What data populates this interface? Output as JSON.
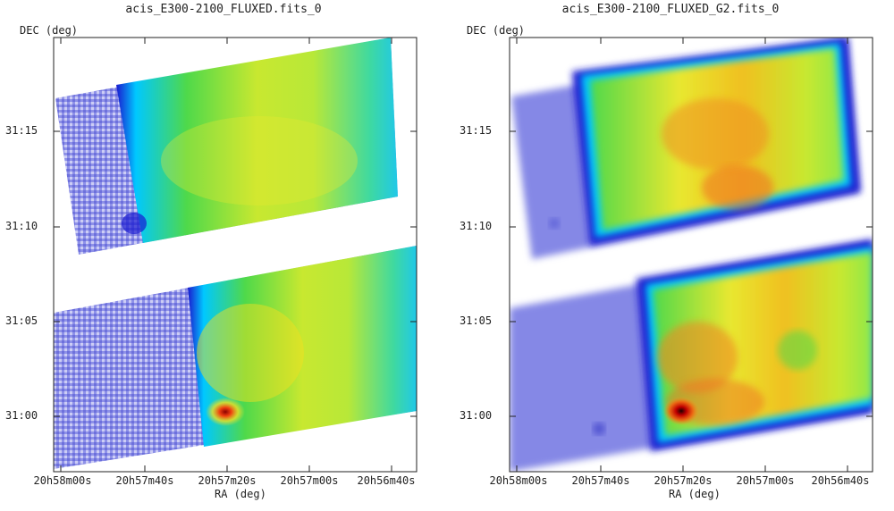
{
  "panels": [
    {
      "title": "acis_E300-2100_FLUXED.fits_0",
      "ylabel": "DEC (deg)",
      "xlabel": "RA (deg)",
      "yticks": [
        "31:15",
        "31:10",
        "31:05",
        "31:00"
      ],
      "xticks": [
        "20h58m00s",
        "20h57m40s",
        "20h57m20s",
        "20h57m00s",
        "20h56m40s"
      ],
      "smoothed": false
    },
    {
      "title": "acis_E300-2100_FLUXED_G2.fits_0",
      "ylabel": "DEC (deg)",
      "xlabel": "RA (deg)",
      "yticks": [
        "31:15",
        "31:10",
        "31:05",
        "31:00"
      ],
      "xticks": [
        "20h58m00s",
        "20h57m40s",
        "20h57m20s",
        "20h57m00s",
        "20h56m40s"
      ],
      "smoothed": true
    }
  ],
  "colors": {
    "background": "#7a7de0",
    "edge": "#1a1ad0",
    "rim": "#00c8ff",
    "body": "#4fd94a",
    "warm": "#f0e020",
    "hot": "#f08a20",
    "core": "#8b0000"
  }
}
